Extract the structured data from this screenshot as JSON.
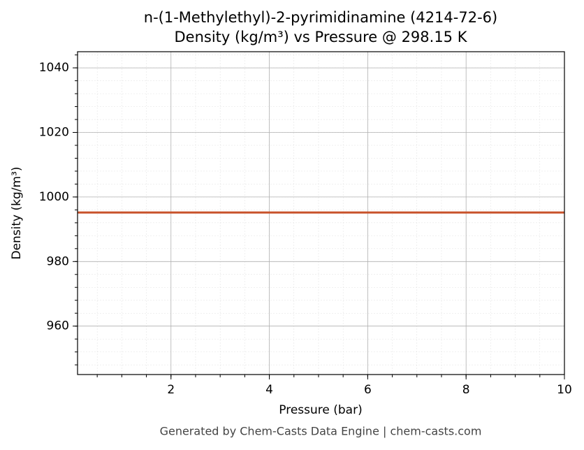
{
  "chart_data": {
    "type": "line",
    "title": "n-(1-Methylethyl)-2-pyrimidinamine (4214-72-6)",
    "subtitle": "Density (kg/m³) vs Pressure @ 298.15 K",
    "x_label": "Pressure (bar)",
    "y_label": "Density (kg/m³)",
    "footer": "Generated by Chem-Casts Data Engine | chem-casts.com",
    "x": [
      0.1,
      10
    ],
    "series": [
      {
        "name": "Density",
        "color": "#c8522a",
        "values": [
          995.2,
          995.2
        ]
      }
    ],
    "xlim": [
      0.1,
      10
    ],
    "xticks": [
      2,
      4,
      6,
      8,
      10
    ],
    "ylim": [
      945,
      1045
    ],
    "yticks": [
      960,
      980,
      1000,
      1020,
      1040
    ],
    "grid": true
  }
}
